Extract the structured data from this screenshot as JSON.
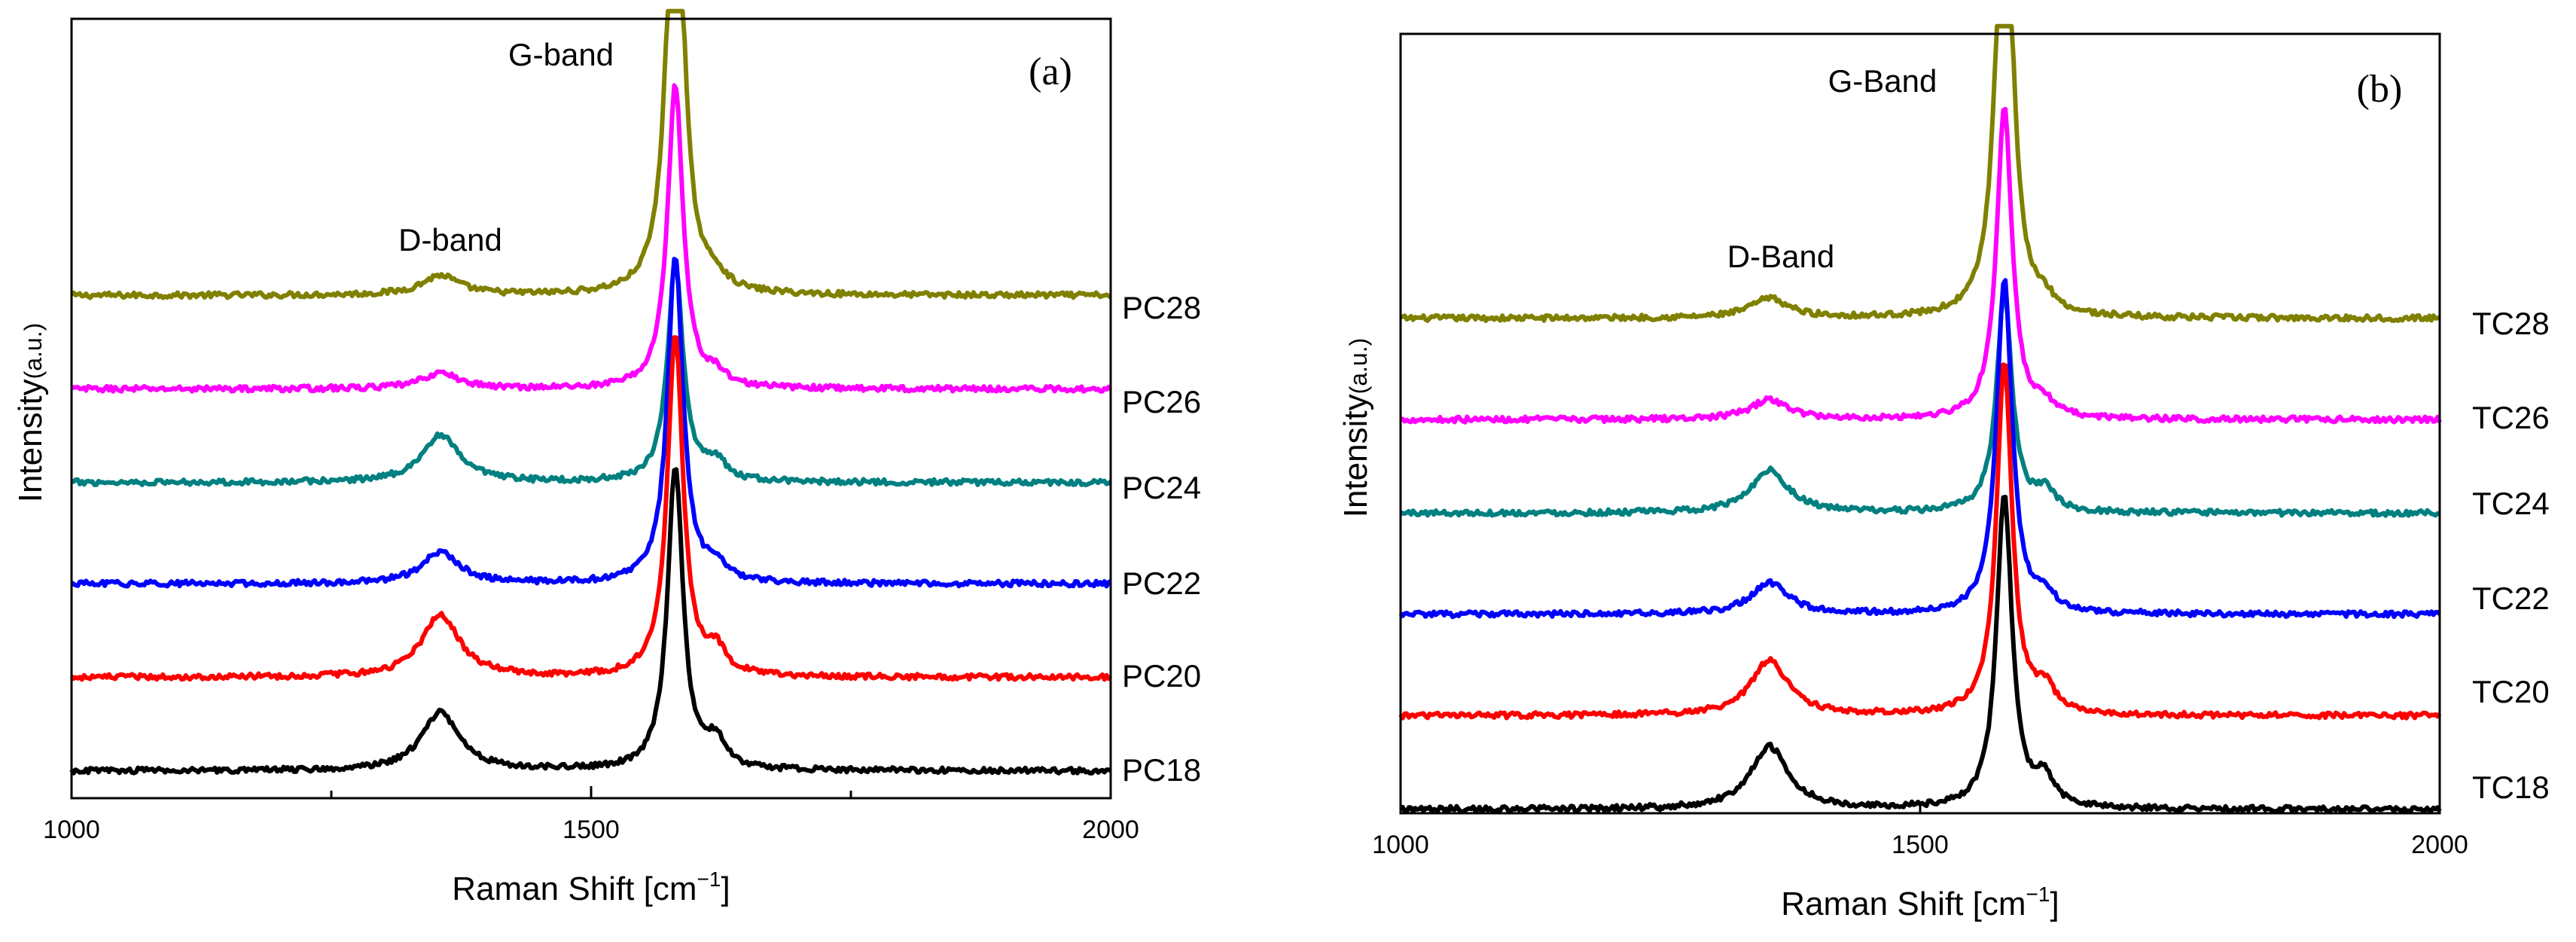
{
  "figure": {
    "panels": [
      {
        "panel_label": "(a)",
        "xlabel_main": "Raman Shift ",
        "xlabel_unit": "[cm",
        "xlabel_sup": "−1",
        "xlabel_close": "]",
        "ylabel_main": "Intensity",
        "ylabel_unit": "(a.u.)",
        "ticks": [
          "1000",
          "1500",
          "2000"
        ],
        "annotations": {
          "d": "D-band",
          "g": "G-band"
        },
        "series_names": [
          "PC28",
          "PC26",
          "PC24",
          "PC22",
          "PC20",
          "PC18"
        ]
      },
      {
        "panel_label": "(b)",
        "xlabel_main": "Raman Shift ",
        "xlabel_unit": "[cm",
        "xlabel_sup": "−1",
        "xlabel_close": "]",
        "ylabel_main": "Intensity",
        "ylabel_unit": "(a.u.)",
        "ticks": [
          "1000",
          "1500",
          "2000"
        ],
        "annotations": {
          "d": "D-Band",
          "g": "G-Band"
        },
        "series_names": [
          "TC28",
          "TC26",
          "TC24",
          "TC22",
          "TC20",
          "TC18"
        ]
      }
    ]
  },
  "chart_data": [
    {
      "type": "line",
      "title": "(a)",
      "xlabel": "Raman Shift [cm−1]",
      "ylabel": "Intensity(a.u.)",
      "xlim": [
        1000,
        2000
      ],
      "ylim": [
        0,
        100
      ],
      "xticks": [
        1000,
        1250,
        1500,
        1750,
        2000
      ],
      "annotations": [
        {
          "text": "D-band",
          "x": 1355,
          "y": 67
        },
        {
          "text": "G-band",
          "x": 1548,
          "y": 97
        }
      ],
      "series": [
        {
          "name": "PC28",
          "color": "#808000",
          "baseline": 64.5,
          "d_height": 2.5,
          "g_height": 65,
          "g_clip": true,
          "shoulder": 1.5
        },
        {
          "name": "PC26",
          "color": "#ff00ff",
          "baseline": 52.5,
          "d_height": 2.0,
          "g_height": 39,
          "g_clip": false,
          "shoulder": 1.5
        },
        {
          "name": "PC24",
          "color": "#008080",
          "baseline": 40.5,
          "d_height": 6.0,
          "g_height": 28,
          "g_clip": false,
          "shoulder": 2.5
        },
        {
          "name": "PC22",
          "color": "#0000ff",
          "baseline": 27.5,
          "d_height": 4.0,
          "g_height": 42,
          "g_clip": false,
          "shoulder": 2.0
        },
        {
          "name": "PC20",
          "color": "#ff0000",
          "baseline": 15.5,
          "d_height": 8.0,
          "g_height": 44,
          "g_clip": false,
          "shoulder": 3.0
        },
        {
          "name": "PC18",
          "color": "#000000",
          "baseline": 3.5,
          "d_height": 7.5,
          "g_height": 39,
          "g_clip": false,
          "shoulder": 3.5
        }
      ]
    },
    {
      "type": "line",
      "title": "(b)",
      "xlabel": "Raman Shift [cm−1]",
      "ylabel": "Intensity(a.u.)",
      "xlim": [
        1000,
        2000
      ],
      "ylim": [
        0,
        100
      ],
      "xticks": [
        1000,
        1250,
        1500,
        1750,
        2000
      ],
      "annotations": [
        {
          "text": "D-Band",
          "x": 1360,
          "y": 69
        },
        {
          "text": "G-Band",
          "x": 1540,
          "y": 97
        }
      ],
      "series": [
        {
          "name": "TC28",
          "color": "#808000",
          "baseline": 63.5,
          "d_height": 2.5,
          "g_height": 65,
          "g_clip": true,
          "shoulder": 1.5
        },
        {
          "name": "TC26",
          "color": "#ff00ff",
          "baseline": 50.5,
          "d_height": 2.5,
          "g_height": 40,
          "g_clip": false,
          "shoulder": 1.5
        },
        {
          "name": "TC24",
          "color": "#008080",
          "baseline": 38.5,
          "d_height": 5.5,
          "g_height": 28,
          "g_clip": false,
          "shoulder": 2.5
        },
        {
          "name": "TC22",
          "color": "#0000ff",
          "baseline": 25.5,
          "d_height": 4.0,
          "g_height": 43,
          "g_clip": false,
          "shoulder": 2.0
        },
        {
          "name": "TC20",
          "color": "#ff0000",
          "baseline": 12.5,
          "d_height": 7.0,
          "g_height": 45,
          "g_clip": false,
          "shoulder": 3.0
        },
        {
          "name": "TC18",
          "color": "#000000",
          "baseline": 0.5,
          "d_height": 8.0,
          "g_height": 40,
          "g_clip": false,
          "shoulder": 3.5
        }
      ]
    }
  ]
}
